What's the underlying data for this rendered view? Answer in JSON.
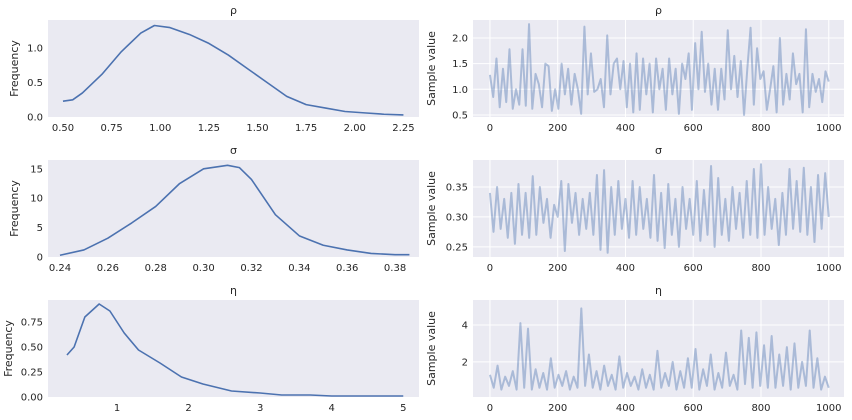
{
  "colors": {
    "background": "#eaeaf2",
    "line": "#4c72b0",
    "grid": "#ffffff"
  },
  "chart_data": [
    {
      "type": "line",
      "title": "ρ",
      "ylabel": "Frequency",
      "xlim": [
        0.423,
        2.33
      ],
      "ylim": [
        0,
        1.41
      ],
      "grid": false,
      "xticks": [
        0.5,
        0.75,
        1.0,
        1.25,
        1.5,
        1.75,
        2.0,
        2.25
      ],
      "xtick_labels": [
        "0.50",
        "0.75",
        "1.00",
        "1.25",
        "1.50",
        "1.75",
        "2.00",
        "2.25"
      ],
      "yticks": [
        0,
        0.5,
        1.0
      ],
      "ytick_labels": [
        "0.0",
        "0.5",
        "1.0"
      ],
      "x": [
        0.5,
        0.55,
        0.6,
        0.7,
        0.8,
        0.9,
        0.97,
        1.05,
        1.15,
        1.25,
        1.35,
        1.45,
        1.55,
        1.65,
        1.75,
        1.85,
        1.95,
        2.05,
        2.15,
        2.25
      ],
      "y": [
        0.23,
        0.25,
        0.35,
        0.62,
        0.95,
        1.22,
        1.33,
        1.3,
        1.2,
        1.07,
        0.9,
        0.7,
        0.5,
        0.3,
        0.18,
        0.13,
        0.08,
        0.06,
        0.04,
        0.03
      ]
    },
    {
      "type": "line",
      "title": "ρ",
      "ylabel": "Sample value",
      "xlim": [
        -50,
        1045
      ],
      "ylim": [
        0.46,
        2.35
      ],
      "grid": true,
      "xticks": [
        0,
        200,
        400,
        600,
        800,
        1000
      ],
      "xtick_labels": [
        "0",
        "200",
        "400",
        "600",
        "800",
        "1000"
      ],
      "yticks": [
        0.5,
        1.0,
        1.5,
        2.0
      ],
      "ytick_labels": [
        "0.5",
        "1.0",
        "1.5",
        "2.0"
      ],
      "values": [
        1.28,
        0.85,
        1.6,
        0.65,
        1.4,
        0.75,
        1.78,
        0.62,
        1.0,
        0.7,
        1.78,
        0.68,
        2.27,
        0.62,
        1.3,
        1.1,
        0.65,
        1.5,
        1.45,
        0.58,
        1.0,
        0.62,
        1.5,
        0.9,
        1.4,
        0.7,
        1.3,
        1.0,
        0.52,
        2.22,
        0.9,
        1.7,
        0.95,
        1.0,
        1.2,
        0.65,
        2.05,
        0.9,
        1.5,
        1.6,
        1.0,
        1.55,
        0.65,
        1.5,
        0.55,
        1.7,
        0.6,
        1.6,
        0.9,
        1.5,
        0.55,
        1.6,
        1.0,
        1.4,
        0.6,
        1.6,
        0.9,
        1.4,
        0.52,
        1.5,
        1.2,
        1.7,
        0.6,
        1.9,
        1.0,
        2.12,
        0.95,
        1.5,
        0.7,
        1.4,
        0.6,
        1.4,
        0.8,
        2.15,
        1.0,
        1.65,
        0.85,
        1.55,
        0.5,
        1.4,
        2.2,
        0.7,
        1.8,
        1.2,
        1.35,
        0.6,
        1.0,
        1.45,
        0.55,
        2.0,
        0.7,
        1.3,
        0.8,
        1.7,
        1.1,
        1.3,
        0.55,
        2.17,
        0.65,
        1.3,
        0.95,
        1.2,
        0.75,
        1.35,
        1.15
      ]
    },
    {
      "type": "line",
      "title": "σ",
      "ylabel": "Frequency",
      "xlim": [
        0.235,
        0.39
      ],
      "ylim": [
        0,
        16.5
      ],
      "grid": false,
      "xticks": [
        0.24,
        0.26,
        0.28,
        0.3,
        0.32,
        0.34,
        0.36,
        0.38
      ],
      "xtick_labels": [
        "0.24",
        "0.26",
        "0.28",
        "0.30",
        "0.32",
        "0.34",
        "0.36",
        "0.38"
      ],
      "yticks": [
        0,
        5,
        10,
        15
      ],
      "ytick_labels": [
        "0",
        "5",
        "10",
        "15"
      ],
      "x": [
        0.24,
        0.25,
        0.26,
        0.27,
        0.28,
        0.29,
        0.3,
        0.31,
        0.315,
        0.32,
        0.325,
        0.33,
        0.34,
        0.35,
        0.36,
        0.37,
        0.38,
        0.386
      ],
      "y": [
        0.3,
        1.2,
        3.2,
        5.8,
        8.6,
        12.5,
        15.0,
        15.6,
        15.2,
        13.2,
        10.2,
        7.2,
        3.6,
        2.0,
        1.2,
        0.6,
        0.4,
        0.4
      ]
    },
    {
      "type": "line",
      "title": "σ",
      "ylabel": "Sample value",
      "xlim": [
        -50,
        1045
      ],
      "ylim": [
        0.233,
        0.395
      ],
      "grid": true,
      "xticks": [
        0,
        200,
        400,
        600,
        800,
        1000
      ],
      "xtick_labels": [
        "0",
        "200",
        "400",
        "600",
        "800",
        "1000"
      ],
      "yticks": [
        0.25,
        0.3,
        0.35
      ],
      "ytick_labels": [
        "0.25",
        "0.30",
        "0.35"
      ],
      "values": [
        0.34,
        0.275,
        0.35,
        0.28,
        0.33,
        0.265,
        0.34,
        0.255,
        0.355,
        0.27,
        0.34,
        0.265,
        0.368,
        0.27,
        0.35,
        0.29,
        0.33,
        0.265,
        0.32,
        0.3,
        0.36,
        0.243,
        0.355,
        0.29,
        0.34,
        0.27,
        0.33,
        0.28,
        0.34,
        0.27,
        0.37,
        0.245,
        0.378,
        0.24,
        0.35,
        0.27,
        0.36,
        0.28,
        0.33,
        0.265,
        0.36,
        0.27,
        0.35,
        0.28,
        0.33,
        0.265,
        0.37,
        0.26,
        0.34,
        0.248,
        0.355,
        0.27,
        0.33,
        0.25,
        0.35,
        0.28,
        0.33,
        0.27,
        0.36,
        0.26,
        0.345,
        0.27,
        0.385,
        0.25,
        0.365,
        0.27,
        0.33,
        0.26,
        0.35,
        0.28,
        0.34,
        0.265,
        0.36,
        0.27,
        0.38,
        0.265,
        0.388,
        0.27,
        0.35,
        0.28,
        0.33,
        0.253,
        0.34,
        0.27,
        0.38,
        0.28,
        0.36,
        0.275,
        0.382,
        0.27,
        0.35,
        0.258,
        0.37,
        0.28,
        0.373,
        0.3
      ]
    },
    {
      "type": "line",
      "title": "η",
      "ylabel": "Frequency",
      "xlim": [
        0.035,
        5.22
      ],
      "ylim": [
        0,
        0.97
      ],
      "grid": false,
      "xticks": [
        1,
        2,
        3,
        4,
        5
      ],
      "xtick_labels": [
        "1",
        "2",
        "3",
        "4",
        "5"
      ],
      "yticks": [
        0,
        0.25,
        0.5,
        0.75
      ],
      "ytick_labels": [
        "0.00",
        "0.25",
        "0.50",
        "0.75"
      ],
      "x": [
        0.3,
        0.4,
        0.55,
        0.75,
        0.9,
        1.1,
        1.3,
        1.6,
        1.9,
        2.2,
        2.6,
        3.0,
        3.3,
        3.7,
        4.0,
        5.0
      ],
      "y": [
        0.42,
        0.5,
        0.8,
        0.93,
        0.86,
        0.64,
        0.47,
        0.34,
        0.2,
        0.13,
        0.06,
        0.04,
        0.02,
        0.02,
        0.01,
        0.01
      ]
    },
    {
      "type": "line",
      "title": "η",
      "ylabel": "Sample value",
      "xlim": [
        -50,
        1045
      ],
      "ylim": [
        0.1,
        5.35
      ],
      "grid": true,
      "xticks": [
        0,
        200,
        400,
        600,
        800,
        1000
      ],
      "xtick_labels": [
        "0",
        "200",
        "400",
        "600",
        "800",
        "1000"
      ],
      "yticks": [
        2,
        4
      ],
      "ytick_labels": [
        "2",
        "4"
      ],
      "values": [
        1.3,
        0.6,
        1.8,
        0.5,
        1.2,
        0.7,
        1.5,
        0.5,
        4.1,
        0.6,
        3.8,
        0.5,
        1.6,
        0.6,
        1.4,
        0.5,
        2.2,
        0.6,
        1.3,
        0.7,
        1.5,
        0.5,
        1.2,
        0.6,
        4.9,
        0.7,
        2.4,
        0.6,
        1.5,
        0.5,
        1.8,
        0.7,
        1.3,
        0.5,
        2.3,
        0.6,
        1.4,
        0.7,
        1.2,
        0.5,
        1.6,
        0.6,
        1.3,
        0.5,
        2.6,
        0.6,
        1.4,
        0.7,
        2.0,
        0.5,
        1.5,
        0.6,
        2.2,
        0.6,
        2.7,
        0.5,
        1.6,
        0.7,
        2.4,
        0.5,
        1.4,
        0.6,
        2.5,
        0.7,
        1.3,
        0.5,
        3.7,
        0.8,
        3.3,
        0.6,
        3.6,
        0.7,
        2.9,
        0.6,
        3.4,
        0.6,
        2.4,
        0.7,
        2.8,
        0.5,
        3.0,
        0.6,
        2.0,
        0.7,
        3.7,
        0.6,
        2.2,
        0.5,
        1.2,
        0.6
      ]
    }
  ]
}
